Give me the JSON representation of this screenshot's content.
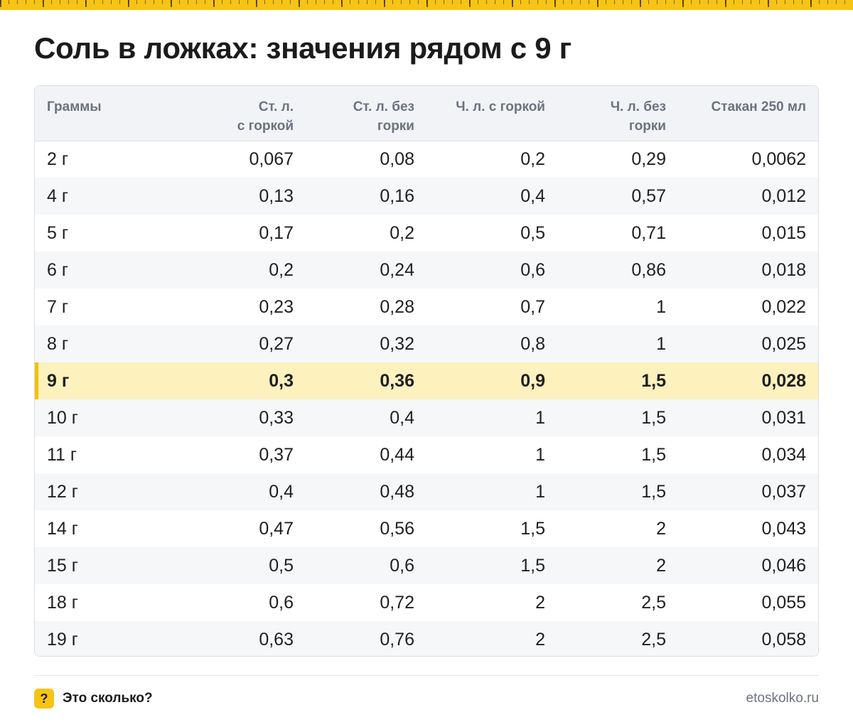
{
  "title": "Соль в ложках: значения рядом с 9 г",
  "table": {
    "headers": [
      "Граммы",
      "Ст. л.\nс горкой",
      "Ст. л. без\nгорки",
      "Ч. л. с горкой",
      "Ч. л. без\nгорки",
      "Стакан 250 мл"
    ],
    "highlight_row": "9 г",
    "rows": [
      [
        "2 г",
        "0,067",
        "0,08",
        "0,2",
        "0,29",
        "0,0062"
      ],
      [
        "4 г",
        "0,13",
        "0,16",
        "0,4",
        "0,57",
        "0,012"
      ],
      [
        "5 г",
        "0,17",
        "0,2",
        "0,5",
        "0,71",
        "0,015"
      ],
      [
        "6 г",
        "0,2",
        "0,24",
        "0,6",
        "0,86",
        "0,018"
      ],
      [
        "7 г",
        "0,23",
        "0,28",
        "0,7",
        "1",
        "0,022"
      ],
      [
        "8 г",
        "0,27",
        "0,32",
        "0,8",
        "1",
        "0,025"
      ],
      [
        "9 г",
        "0,3",
        "0,36",
        "0,9",
        "1,5",
        "0,028"
      ],
      [
        "10 г",
        "0,33",
        "0,4",
        "1",
        "1,5",
        "0,031"
      ],
      [
        "11 г",
        "0,37",
        "0,44",
        "1",
        "1,5",
        "0,034"
      ],
      [
        "12 г",
        "0,4",
        "0,48",
        "1",
        "1,5",
        "0,037"
      ],
      [
        "14 г",
        "0,47",
        "0,56",
        "1,5",
        "2",
        "0,043"
      ],
      [
        "15 г",
        "0,5",
        "0,6",
        "1,5",
        "2",
        "0,046"
      ],
      [
        "18 г",
        "0,6",
        "0,72",
        "2",
        "2,5",
        "0,055"
      ],
      [
        "19 г",
        "0,63",
        "0,76",
        "2",
        "2,5",
        "0,058"
      ]
    ]
  },
  "footer": {
    "logo_glyph": "?",
    "brand": "Это сколько?",
    "site": "etoskolko.ru"
  },
  "colors": {
    "accent": "#f6c415",
    "highlight_row": "#fdf1be",
    "header_bg": "#f1f3f6",
    "stripe": "#f6f7f9"
  }
}
